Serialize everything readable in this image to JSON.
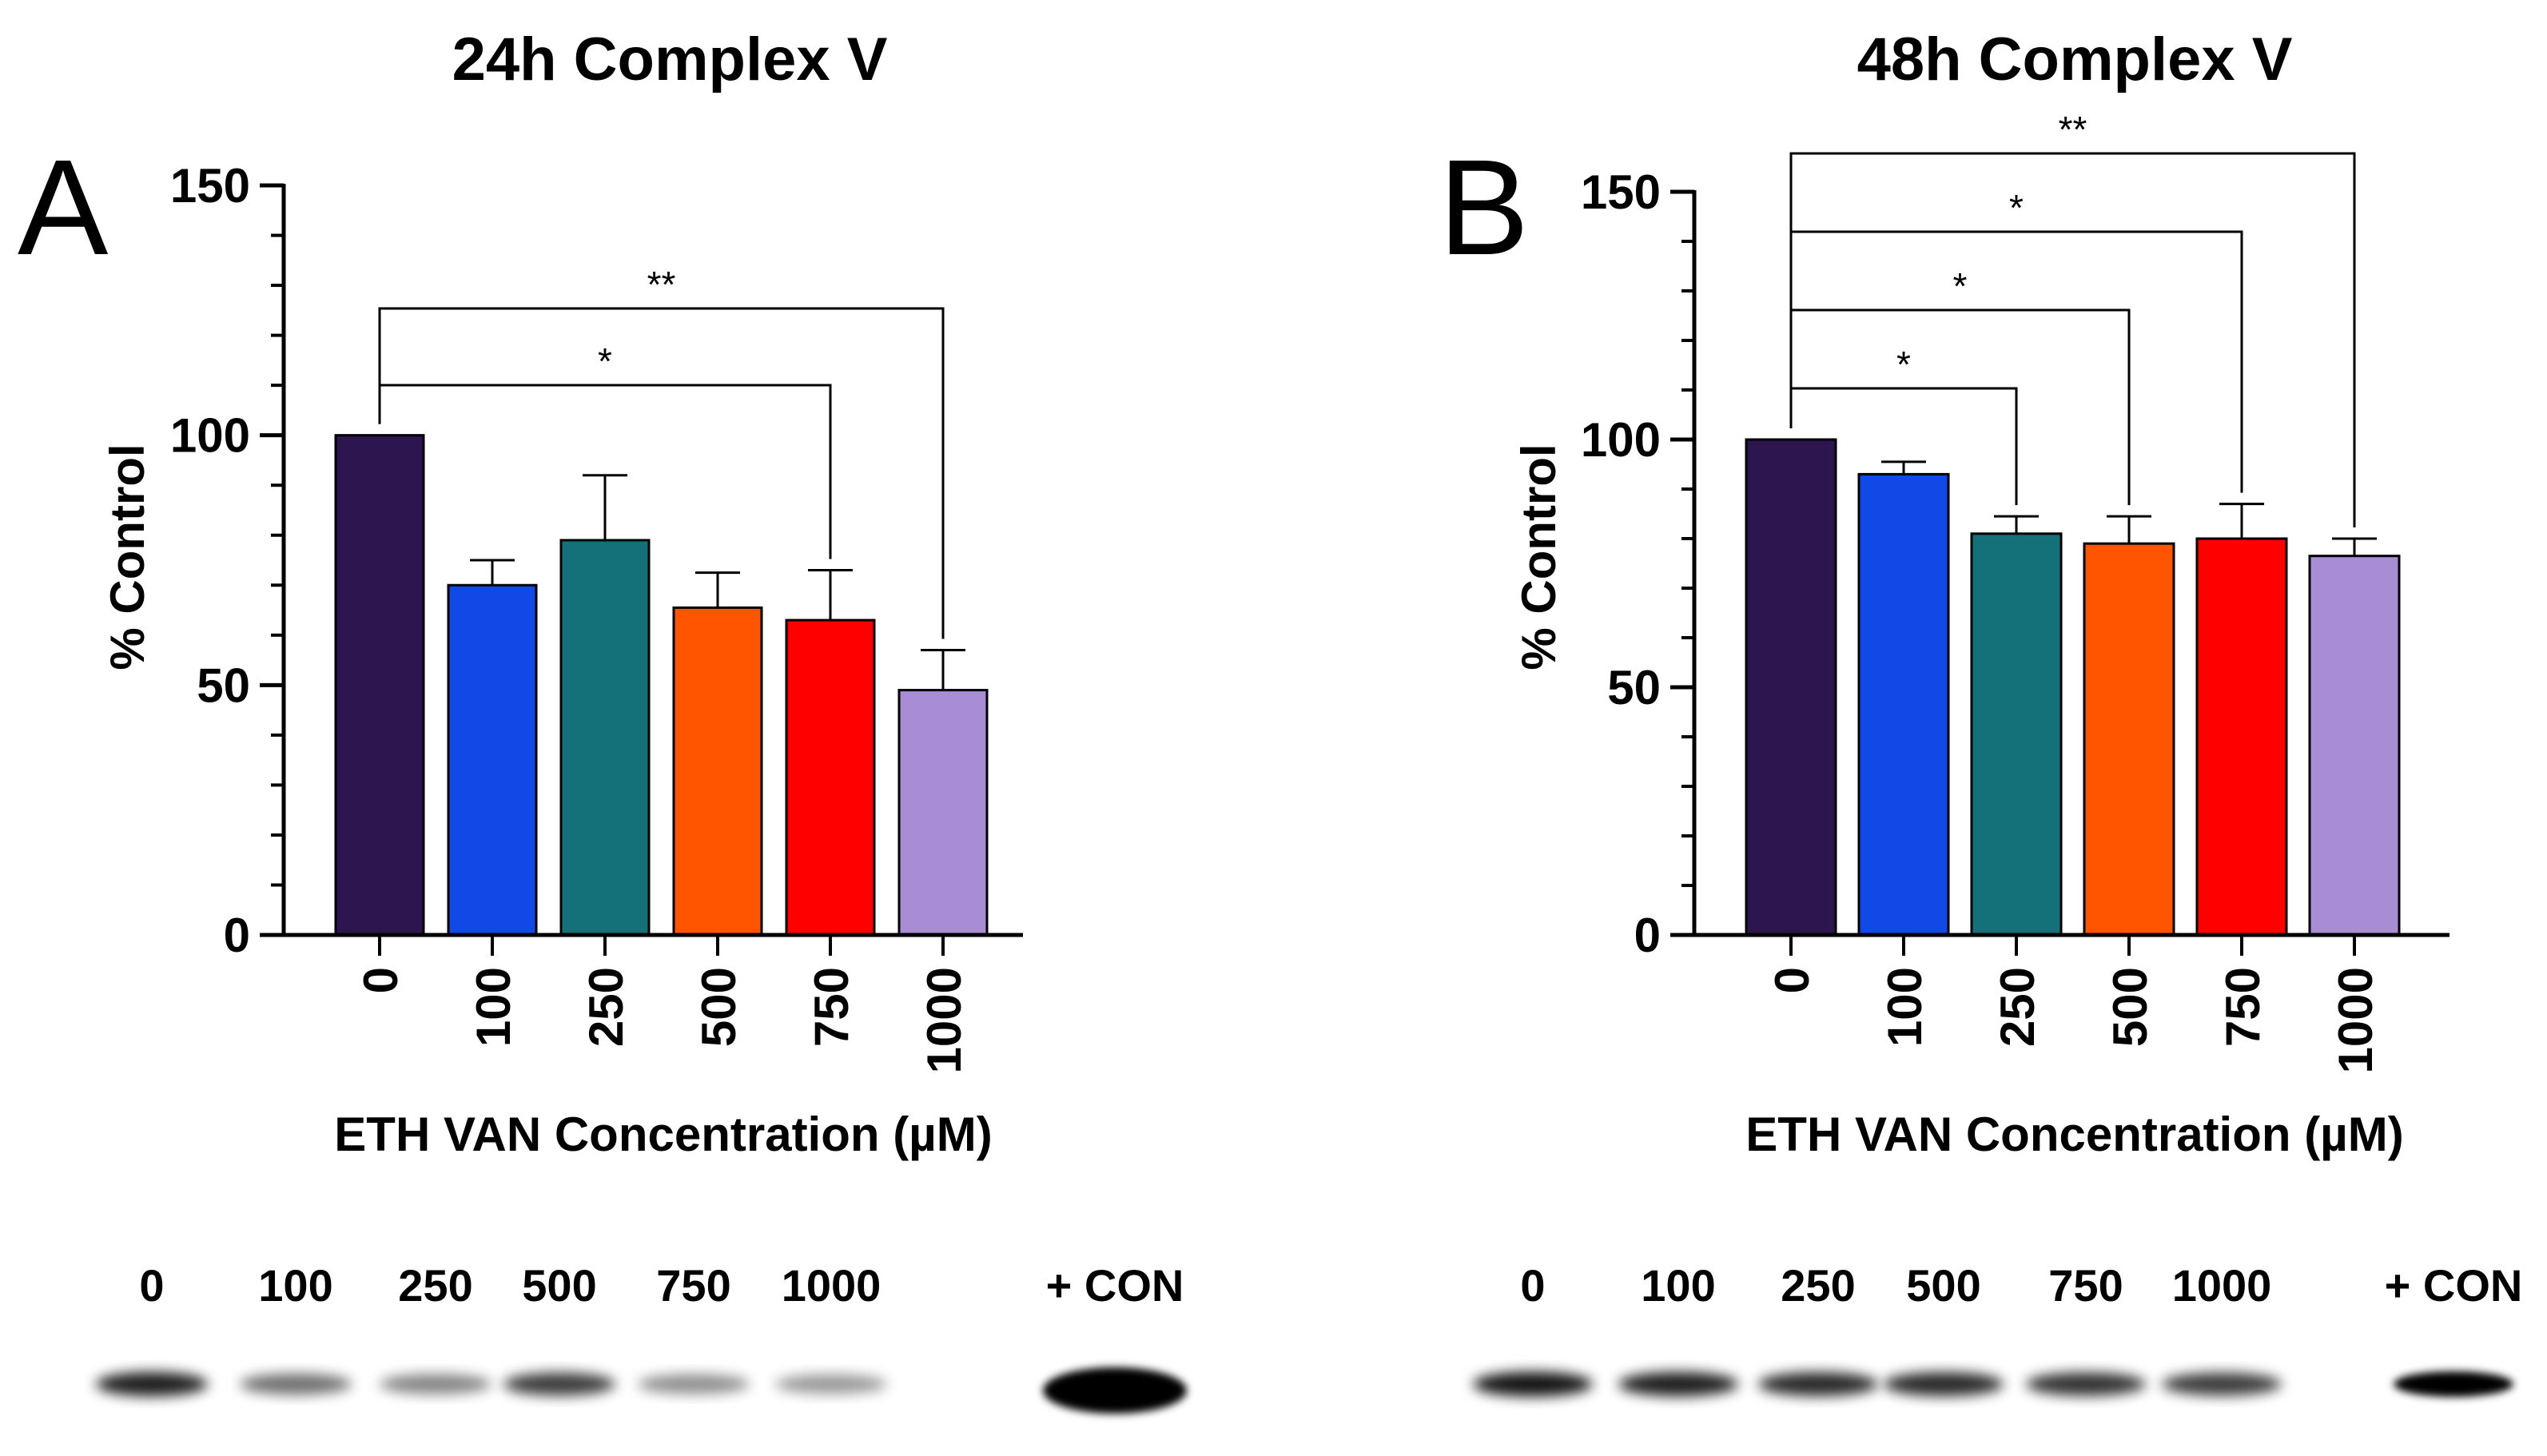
{
  "chart_data": [
    {
      "panel_label": "A",
      "type": "bar",
      "title": "24h Complex V",
      "xlabel": "ETH VAN Concentration (µM)",
      "ylabel": "% Control",
      "ylim": [
        0,
        150
      ],
      "yticks": [
        0,
        50,
        100,
        150
      ],
      "categories": [
        "0",
        "100",
        "250",
        "500",
        "750",
        "1000"
      ],
      "values": [
        100,
        70,
        79,
        65.5,
        63,
        49
      ],
      "errors": [
        0,
        5,
        13,
        7,
        10,
        8
      ],
      "colors": [
        "#2d1650",
        "#1149e6",
        "#14717a",
        "#ff5500",
        "#ff0000",
        "#a88cd4"
      ],
      "significance": [
        {
          "from": "0",
          "to": "750",
          "label": "*"
        },
        {
          "from": "0",
          "to": "1000",
          "label": "**"
        }
      ],
      "blot": {
        "labels": [
          "0",
          "100",
          "250",
          "500",
          "750",
          "1000",
          "+ CON"
        ],
        "intensity": [
          0.85,
          0.45,
          0.35,
          0.7,
          0.3,
          0.25,
          1.0
        ]
      }
    },
    {
      "panel_label": "B",
      "type": "bar",
      "title": "48h Complex V",
      "xlabel": "ETH VAN Concentration (µM)",
      "ylabel": "% Control",
      "ylim": [
        0,
        150
      ],
      "yticks": [
        0,
        50,
        100,
        150
      ],
      "categories": [
        "0",
        "100",
        "250",
        "500",
        "750",
        "1000"
      ],
      "values": [
        100,
        93,
        81,
        79,
        80,
        76.5
      ],
      "errors": [
        0,
        2.5,
        3.5,
        5.5,
        7,
        3.5
      ],
      "colors": [
        "#2d1650",
        "#1149e6",
        "#14717a",
        "#ff5500",
        "#ff0000",
        "#a88cd4"
      ],
      "significance": [
        {
          "from": "0",
          "to": "250",
          "label": "*"
        },
        {
          "from": "0",
          "to": "500",
          "label": "*"
        },
        {
          "from": "0",
          "to": "750",
          "label": "*"
        },
        {
          "from": "0",
          "to": "1000",
          "label": "**"
        }
      ],
      "blot": {
        "labels": [
          "0",
          "100",
          "250",
          "500",
          "750",
          "1000",
          "+ CON"
        ],
        "intensity": [
          0.9,
          0.85,
          0.8,
          0.8,
          0.75,
          0.7,
          1.0
        ]
      }
    }
  ]
}
